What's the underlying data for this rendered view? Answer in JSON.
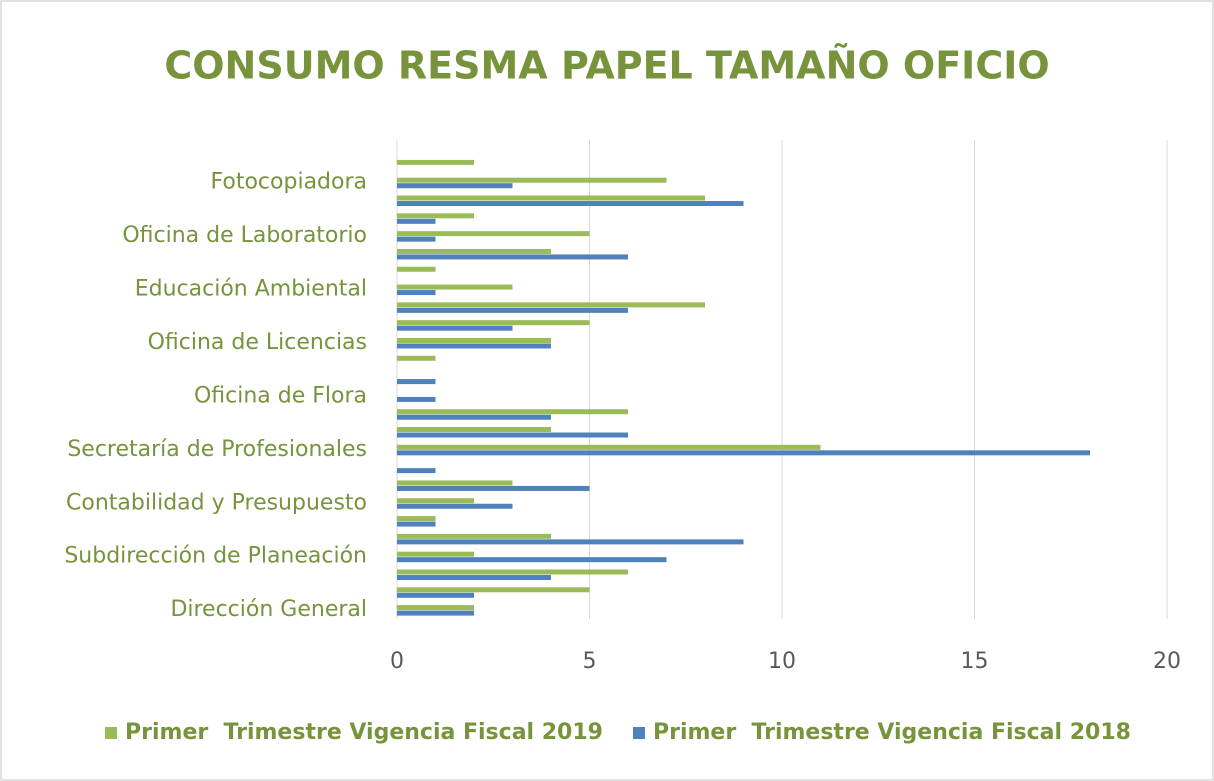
{
  "chart_data": {
    "type": "bar",
    "orientation": "horizontal",
    "title": "CONSUMO RESMA PAPEL TAMAÑO OFICIO",
    "categories": [
      "Dirección General",
      null,
      null,
      "Subdirección de Planeación",
      null,
      null,
      "Contabilidad y Presupuesto",
      null,
      null,
      "Secretaría de Profesionales",
      null,
      null,
      "Oficina de Flora",
      null,
      null,
      "Oficina de Licencias",
      null,
      null,
      "Educación Ambiental",
      null,
      null,
      "Oficina de Laboratorio",
      null,
      null,
      "Fotocopiadora",
      null
    ],
    "series": [
      {
        "name": "Primer  Trimestre Vigencia Fiscal 2019",
        "color": "#9bbb59",
        "values": [
          2,
          5,
          6,
          2,
          4,
          1,
          2,
          3,
          0,
          11,
          4,
          6,
          0,
          0,
          1,
          4,
          5,
          8,
          3,
          1,
          4,
          5,
          2,
          8,
          7,
          2
        ]
      },
      {
        "name": "Primer  Trimestre Vigencia Fiscal 2018",
        "color": "#4f81bd",
        "values": [
          2,
          2,
          4,
          7,
          9,
          1,
          3,
          5,
          1,
          18,
          6,
          4,
          1,
          1,
          0,
          4,
          3,
          6,
          1,
          0,
          6,
          1,
          1,
          9,
          3,
          0
        ]
      }
    ],
    "xlim": [
      0,
      20
    ],
    "xticks": [
      0,
      5,
      10,
      15,
      20
    ],
    "grid": true,
    "legend": "bottom"
  }
}
